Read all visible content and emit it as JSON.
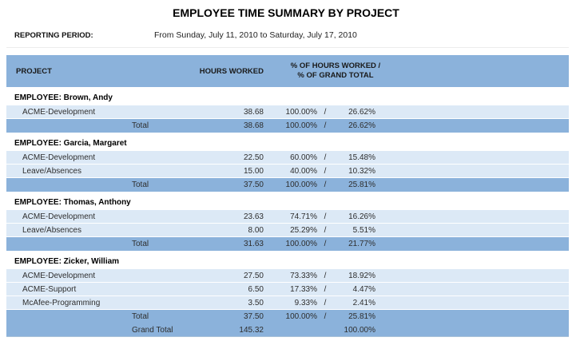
{
  "report": {
    "title": "EMPLOYEE TIME SUMMARY BY PROJECT",
    "period_label": "REPORTING PERIOD:",
    "period_value": "From Sunday, July 11, 2010 to Saturday, July 17, 2010"
  },
  "table": {
    "columns": {
      "project": "PROJECT",
      "hours": "HOURS WORKED",
      "pct_line1": "% OF HOURS WORKED /",
      "pct_line2": "% OF GRAND TOTAL"
    },
    "total_label": "Total",
    "grand_total_label": "Grand Total",
    "pct_separator": "/",
    "sections": [
      {
        "employee": "EMPLOYEE: Brown, Andy",
        "rows": [
          {
            "project": "ACME-Development",
            "hours": "38.68",
            "pct_hours": "100.00%",
            "pct_grand": "26.62%"
          }
        ],
        "total": {
          "hours": "38.68",
          "pct_hours": "100.00%",
          "pct_grand": "26.62%"
        }
      },
      {
        "employee": "EMPLOYEE: Garcia, Margaret",
        "rows": [
          {
            "project": "ACME-Development",
            "hours": "22.50",
            "pct_hours": "60.00%",
            "pct_grand": "15.48%"
          },
          {
            "project": "Leave/Absences",
            "hours": "15.00",
            "pct_hours": "40.00%",
            "pct_grand": "10.32%"
          }
        ],
        "total": {
          "hours": "37.50",
          "pct_hours": "100.00%",
          "pct_grand": "25.81%"
        }
      },
      {
        "employee": "EMPLOYEE: Thomas, Anthony",
        "rows": [
          {
            "project": "ACME-Development",
            "hours": "23.63",
            "pct_hours": "74.71%",
            "pct_grand": "16.26%"
          },
          {
            "project": "Leave/Absences",
            "hours": "8.00",
            "pct_hours": "25.29%",
            "pct_grand": "5.51%"
          }
        ],
        "total": {
          "hours": "31.63",
          "pct_hours": "100.00%",
          "pct_grand": "21.77%"
        }
      },
      {
        "employee": "EMPLOYEE: Zicker, William",
        "rows": [
          {
            "project": "ACME-Development",
            "hours": "27.50",
            "pct_hours": "73.33%",
            "pct_grand": "18.92%"
          },
          {
            "project": "ACME-Support",
            "hours": "6.50",
            "pct_hours": "17.33%",
            "pct_grand": "4.47%"
          },
          {
            "project": "McAfee-Programming",
            "hours": "3.50",
            "pct_hours": "9.33%",
            "pct_grand": "2.41%"
          }
        ],
        "total": {
          "hours": "37.50",
          "pct_hours": "100.00%",
          "pct_grand": "25.81%"
        }
      }
    ],
    "grand_total": {
      "hours": "145.32",
      "pct_grand": "100.00%"
    }
  },
  "colors": {
    "header_blue": "#8BB2DB",
    "row_light_blue": "#DCE9F6",
    "background": "#FFFFFF"
  }
}
